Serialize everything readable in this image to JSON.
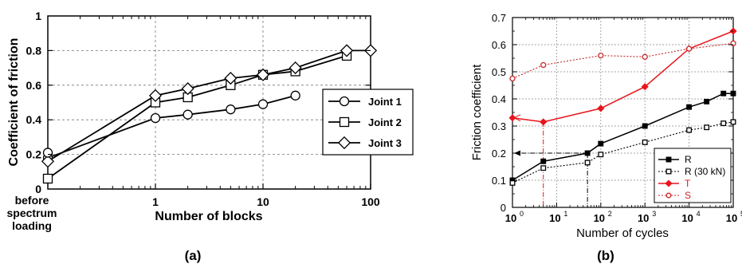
{
  "captions": {
    "a": "(a)",
    "b": "(b)"
  },
  "chart_data": [
    {
      "type": "line",
      "xlabel": "Number of blocks",
      "ylabel": "Coefficient of friction",
      "x_scale": "log",
      "xlim": [
        0.1,
        100
      ],
      "ylim": [
        0,
        1
      ],
      "x_tick_labels": [
        "1",
        "10",
        "100"
      ],
      "x_extra_label": [
        "before",
        "spectrum",
        "loading"
      ],
      "y_tick_labels": [
        "0",
        "0.2",
        "0.4",
        "0.6",
        "0.8",
        "1"
      ],
      "grid": true,
      "legend": "center-right",
      "series": [
        {
          "name": "Joint 1",
          "marker": "circle",
          "x": [
            0.1,
            1,
            2,
            5,
            10,
            20
          ],
          "y": [
            0.18,
            0.41,
            0.43,
            0.46,
            0.49,
            0.54
          ]
        },
        {
          "name": "Joint 2",
          "marker": "square",
          "x": [
            0.1,
            1,
            2,
            5,
            10,
            20,
            60
          ],
          "y": [
            0.06,
            0.5,
            0.53,
            0.6,
            0.66,
            0.68,
            0.77
          ]
        },
        {
          "name": "Joint 3",
          "marker": "diamond",
          "x": [
            0.1,
            1,
            2,
            5,
            10,
            20,
            60,
            100
          ],
          "y": [
            0.16,
            0.54,
            0.58,
            0.64,
            0.66,
            0.7,
            0.8,
            0.8
          ]
        }
      ],
      "extra_points": [
        {
          "series": "Joint 3",
          "x": 0.1,
          "y": 0.21,
          "marker": "circle"
        }
      ]
    },
    {
      "type": "line",
      "xlabel": "Number of cycles",
      "ylabel": "Friction coefficient",
      "x_scale": "log",
      "xlim": [
        1,
        100000
      ],
      "ylim": [
        0,
        0.7
      ],
      "x_tick_labels": [
        "10",
        "10",
        "10",
        "10",
        "10",
        "10"
      ],
      "x_tick_exponents": [
        "0",
        "1",
        "2",
        "3",
        "4",
        "5"
      ],
      "y_tick_labels": [
        "0",
        "0.1",
        "0.2",
        "0.3",
        "0.4",
        "0.5",
        "0.6",
        "0.7"
      ],
      "grid": true,
      "legend": "bottom-right",
      "series": [
        {
          "name": "R",
          "color": "#000000",
          "style": "solid",
          "marker": "filled-square",
          "x": [
            1,
            5,
            50,
            100,
            1000,
            10000,
            25000,
            60000,
            100000
          ],
          "y": [
            0.1,
            0.17,
            0.2,
            0.235,
            0.3,
            0.37,
            0.39,
            0.42,
            0.42
          ]
        },
        {
          "name": "R (30 kN)",
          "color": "#000000",
          "style": "dotted",
          "marker": "open-square",
          "x": [
            1,
            5,
            50,
            100,
            1000,
            10000,
            25000,
            60000,
            100000
          ],
          "y": [
            0.09,
            0.145,
            0.165,
            0.195,
            0.24,
            0.285,
            0.295,
            0.31,
            0.315
          ]
        },
        {
          "name": "T",
          "color": "#e8141c",
          "style": "solid",
          "marker": "filled-diamond",
          "x": [
            1,
            5,
            100,
            1000,
            10000,
            100000
          ],
          "y": [
            0.33,
            0.315,
            0.365,
            0.445,
            0.585,
            0.65
          ]
        },
        {
          "name": "S",
          "color": "#c62828",
          "style": "dotted",
          "marker": "open-circle",
          "x": [
            1,
            5,
            100,
            1000,
            10000,
            100000
          ],
          "y": [
            0.475,
            0.525,
            0.56,
            0.555,
            0.585,
            0.605
          ]
        }
      ],
      "annotations": [
        {
          "series": "R",
          "x_from": 50,
          "y": 0.2,
          "arrow_to": "y-axis"
        },
        {
          "series": "T",
          "x": 5,
          "drop_to": "x-axis"
        },
        {
          "series": "R",
          "x": 50,
          "drop_to": "x-axis"
        }
      ]
    }
  ]
}
